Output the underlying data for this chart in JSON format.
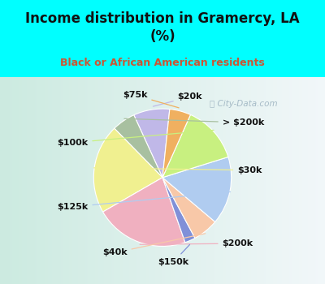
{
  "title": "Income distribution in Gramercy, LA\n(%)",
  "subtitle": "Black or African American residents",
  "title_color": "#111111",
  "subtitle_color": "#cc5533",
  "background_top": "#00ffff",
  "background_chart_left": "#c8e8d8",
  "background_chart_right": "#e8f4f0",
  "labels": [
    "$20k",
    "> $200k",
    "$30k",
    "$200k",
    "$150k",
    "$40k",
    "$125k",
    "$100k",
    "$75k"
  ],
  "values": [
    8.5,
    5.5,
    21.0,
    22.0,
    2.5,
    6.0,
    16.0,
    13.5,
    5.0
  ],
  "colors": [
    "#c0b8e8",
    "#a8c0a0",
    "#f0f090",
    "#f0b0c0",
    "#8090d8",
    "#f8c8a8",
    "#b0ccf0",
    "#c8f080",
    "#f0b060"
  ],
  "label_fontsize": 8,
  "watermark": "  City-Data.com",
  "startangle": 84
}
